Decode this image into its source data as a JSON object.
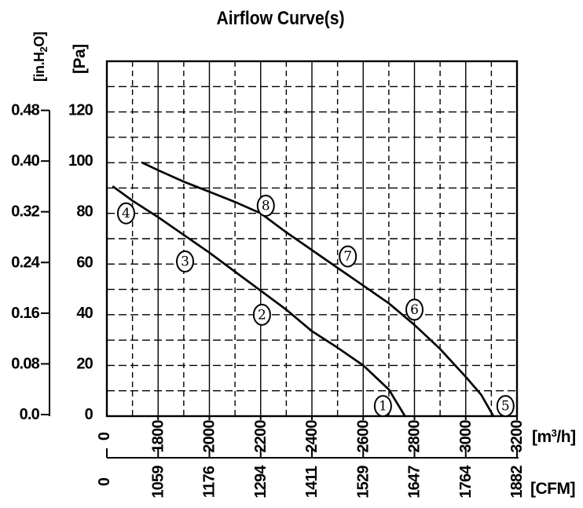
{
  "chart_data": {
    "type": "line",
    "title": "Airflow Curve(s)",
    "x_axis": {
      "m3h": {
        "label_pre": "[m",
        "label_sup": "3",
        "label_post": "/h]",
        "ticks": [
          0,
          1800,
          2000,
          2200,
          2400,
          2600,
          2800,
          3000,
          3200
        ],
        "plot_range": [
          1600,
          3200
        ],
        "minor_step": 100
      },
      "cfm": {
        "label": "[CFM]",
        "ticks": [
          0,
          1059,
          1176,
          1294,
          1411,
          1529,
          1647,
          1764,
          1882
        ]
      }
    },
    "y_axis": {
      "pa": {
        "label": "[Pa]",
        "ticks": [
          0,
          20,
          40,
          60,
          80,
          100,
          120
        ],
        "plot_range": [
          0,
          140
        ],
        "minor_step": 10
      },
      "inh2o": {
        "label_pre": "[in.H",
        "label_sub": "2",
        "label_post": "O]",
        "ticks": [
          "0.0",
          "0.08",
          "0.16",
          "0.24",
          "0.32",
          "0.40",
          "0.48"
        ]
      }
    },
    "grid": {
      "style": "dashed-minor",
      "legend": "none"
    },
    "colors": {
      "line": "#000000",
      "background": "#ffffff",
      "grid": "#000000"
    },
    "series": [
      {
        "name": "curve-1-2-3-4",
        "points_m3h_pa": [
          [
            1625,
            90.5
          ],
          [
            1700,
            85
          ],
          [
            1800,
            78.5
          ],
          [
            1900,
            71.5
          ],
          [
            2000,
            64.5
          ],
          [
            2100,
            57
          ],
          [
            2200,
            49.5
          ],
          [
            2300,
            42
          ],
          [
            2400,
            33.5
          ],
          [
            2500,
            27
          ],
          [
            2600,
            20
          ],
          [
            2700,
            10.5
          ],
          [
            2763,
            0
          ]
        ],
        "point_labels": [
          {
            "text": "4",
            "m3h": 1675,
            "pa": 80
          },
          {
            "text": "3",
            "m3h": 1905,
            "pa": 61
          },
          {
            "text": "2",
            "m3h": 2205,
            "pa": 40
          },
          {
            "text": "1",
            "m3h": 2677,
            "pa": 4
          }
        ]
      },
      {
        "name": "curve-5-6-7-8",
        "points_m3h_pa": [
          [
            1738,
            100
          ],
          [
            1800,
            97
          ],
          [
            1900,
            92.5
          ],
          [
            2000,
            88.5
          ],
          [
            2100,
            84.5
          ],
          [
            2200,
            80
          ],
          [
            2300,
            72.5
          ],
          [
            2400,
            65.5
          ],
          [
            2500,
            58.5
          ],
          [
            2600,
            51.5
          ],
          [
            2700,
            44.5
          ],
          [
            2800,
            36
          ],
          [
            2900,
            26.5
          ],
          [
            3000,
            15.5
          ],
          [
            3060,
            8.5
          ],
          [
            3108,
            0
          ]
        ],
        "point_labels": [
          {
            "text": "8",
            "m3h": 2220,
            "pa": 83
          },
          {
            "text": "7",
            "m3h": 2540,
            "pa": 63
          },
          {
            "text": "6",
            "m3h": 2800,
            "pa": 42
          },
          {
            "text": "5",
            "m3h": 3155,
            "pa": 4
          }
        ]
      }
    ]
  }
}
